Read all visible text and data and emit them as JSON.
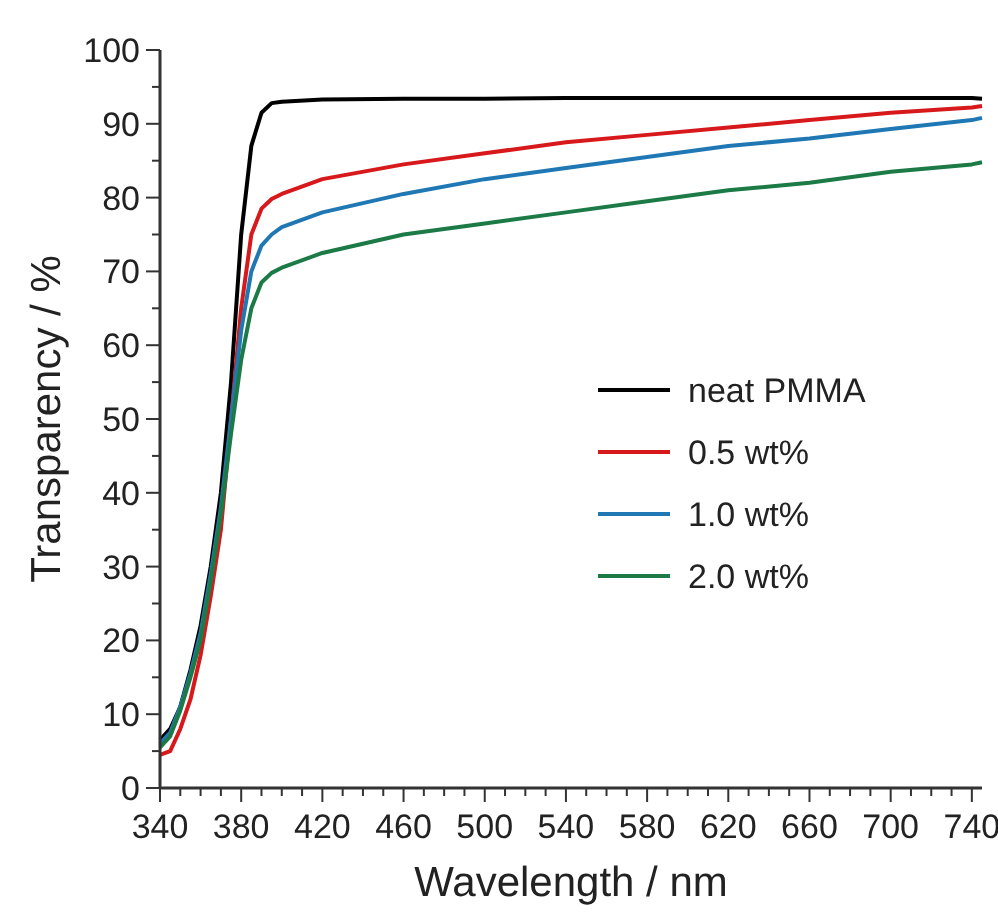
{
  "chart_data": {
    "type": "line",
    "xlabel": "Wavelength / nm",
    "ylabel": "Transparency / %",
    "x": [
      340,
      345,
      350,
      355,
      360,
      365,
      370,
      375,
      380,
      385,
      390,
      395,
      400,
      420,
      460,
      500,
      540,
      580,
      620,
      660,
      700,
      740,
      745
    ],
    "xlim": [
      340,
      745
    ],
    "ylim": [
      0,
      100
    ],
    "xticks": [
      340,
      {
        "value": 350,
        "label": null
      },
      {
        "value": 360,
        "label": null
      },
      {
        "value": 370,
        "label": null
      },
      380,
      {
        "value": 390,
        "label": null
      },
      {
        "value": 400,
        "label": null
      },
      {
        "value": 410,
        "label": null
      },
      420,
      {
        "value": 430,
        "label": null
      },
      {
        "value": 440,
        "label": null
      },
      {
        "value": 450,
        "label": null
      },
      460,
      {
        "value": 470,
        "label": null
      },
      {
        "value": 480,
        "label": null
      },
      {
        "value": 490,
        "label": null
      },
      500,
      {
        "value": 510,
        "label": null
      },
      {
        "value": 520,
        "label": null
      },
      {
        "value": 530,
        "label": null
      },
      540,
      {
        "value": 550,
        "label": null
      },
      {
        "value": 560,
        "label": null
      },
      {
        "value": 570,
        "label": null
      },
      580,
      {
        "value": 590,
        "label": null
      },
      {
        "value": 600,
        "label": null
      },
      {
        "value": 610,
        "label": null
      },
      620,
      {
        "value": 630,
        "label": null
      },
      {
        "value": 640,
        "label": null
      },
      {
        "value": 650,
        "label": null
      },
      660,
      {
        "value": 670,
        "label": null
      },
      {
        "value": 680,
        "label": null
      },
      {
        "value": 690,
        "label": null
      },
      700,
      {
        "value": 710,
        "label": null
      },
      {
        "value": 720,
        "label": null
      },
      {
        "value": 730,
        "label": null
      },
      740
    ],
    "yticks": [
      0,
      {
        "value": 5,
        "label": null
      },
      10,
      {
        "value": 15,
        "label": null
      },
      20,
      {
        "value": 25,
        "label": null
      },
      30,
      {
        "value": 35,
        "label": null
      },
      40,
      {
        "value": 45,
        "label": null
      },
      50,
      {
        "value": 55,
        "label": null
      },
      60,
      {
        "value": 65,
        "label": null
      },
      70,
      {
        "value": 75,
        "label": null
      },
      80,
      {
        "value": 85,
        "label": null
      },
      90,
      {
        "value": 95,
        "label": null
      },
      100
    ],
    "legend": "right",
    "grid": false,
    "marker": "none",
    "line_style": "solid",
    "series": [
      {
        "name": "neat PMMA",
        "color": "#000000",
        "values": [
          6.5,
          8,
          11,
          16,
          22,
          30,
          40,
          55,
          75,
          87,
          91.5,
          92.8,
          93,
          93.3,
          93.4,
          93.4,
          93.5,
          93.5,
          93.5,
          93.5,
          93.5,
          93.5,
          93.4
        ]
      },
      {
        "name": "0.5 wt%",
        "color": "#d7191c",
        "values": [
          4.5,
          5,
          8,
          12,
          18,
          26,
          35,
          50,
          65,
          75,
          78.5,
          79.8,
          80.5,
          82.5,
          84.5,
          86,
          87.5,
          88.5,
          89.5,
          90.5,
          91.5,
          92.2,
          92.4
        ]
      },
      {
        "name": "1.0 wt%",
        "color": "#1f78b4",
        "values": [
          6,
          7.5,
          11,
          15.5,
          21,
          29,
          38,
          50,
          62,
          70,
          73.5,
          75,
          76,
          78,
          80.5,
          82.5,
          84,
          85.5,
          87,
          88,
          89.3,
          90.5,
          90.8
        ]
      },
      {
        "name": "2.0 wt%",
        "color": "#1b7a45",
        "values": [
          5.5,
          7,
          10.5,
          15,
          20,
          28,
          37,
          48,
          58,
          65,
          68.5,
          69.8,
          70.5,
          72.5,
          75,
          76.5,
          78,
          79.5,
          81,
          82,
          83.5,
          84.5,
          84.8
        ]
      }
    ]
  }
}
